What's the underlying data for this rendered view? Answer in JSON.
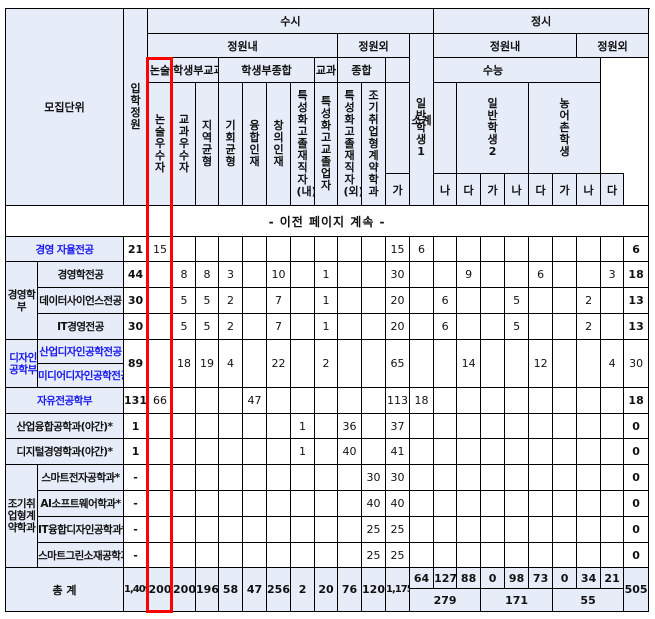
{
  "header": {
    "unit": "모집단위",
    "quota": "입학정원",
    "susi": "수시",
    "jeongsi": "정시",
    "within": "정원내",
    "outside": "정원외",
    "subtotal": "소계",
    "nonsul": "논술",
    "gyogwa_group": "학생부교과",
    "jonghap_group": "학생부종합",
    "gyogwa": "교과",
    "jonghap": "종합",
    "suneung": "수능",
    "susi_cols": [
      "논술우수자",
      "교과우수자",
      "지역균형",
      "기회균형",
      "융합인재",
      "창의인재",
      "특성화고졸재직자(내)",
      "특성화고교졸업자",
      "특성화고졸재직자(외)",
      "조기취업형계약학과"
    ],
    "jeongsi_groups": [
      "일반학생1",
      "일반학생2",
      "농어촌학생"
    ],
    "gun": [
      "가",
      "나",
      "다"
    ]
  },
  "continuation": "- 이전 페이지 계속 -",
  "rows": [
    {
      "name": "경영 자율전공",
      "blue": true,
      "quota": "21",
      "susi": [
        "15",
        "",
        "",
        "",
        "",
        "",
        "",
        "",
        "",
        "",
        "15"
      ],
      "jeongsi": [
        "6",
        "",
        "",
        "",
        "",
        "",
        "",
        "",
        "",
        "6"
      ]
    },
    {
      "group": "경영학부",
      "groupSpan": 3,
      "name": "경영학전공",
      "quota": "44",
      "susi": [
        "",
        "8",
        "8",
        "3",
        "",
        "10",
        "",
        "1",
        "",
        "",
        "30"
      ],
      "jeongsi": [
        "",
        "",
        "9",
        "",
        "",
        "6",
        "",
        "",
        "3",
        "18"
      ]
    },
    {
      "name": "데이터사이언스전공",
      "quota": "30",
      "susi": [
        "",
        "5",
        "5",
        "2",
        "",
        "7",
        "",
        "1",
        "",
        "",
        "20"
      ],
      "jeongsi": [
        "",
        "6",
        "",
        "",
        "5",
        "",
        "",
        "2",
        "",
        "13"
      ]
    },
    {
      "name": "IT경영전공",
      "quota": "30",
      "susi": [
        "",
        "5",
        "5",
        "2",
        "",
        "7",
        "",
        "1",
        "",
        "",
        "20"
      ],
      "jeongsi": [
        "",
        "6",
        "",
        "",
        "5",
        "",
        "",
        "2",
        "",
        "13"
      ]
    },
    {
      "group": "디자인공학부",
      "groupSpan": 2,
      "blue": true,
      "name": "산업디자인공학전공",
      "name2": "미디어디자인공학전공",
      "quota": "89",
      "susi": [
        "",
        "18",
        "19",
        "4",
        "",
        "22",
        "",
        "2",
        "",
        "",
        "65"
      ],
      "jeongsi": [
        "",
        "",
        "14",
        "",
        "",
        "12",
        "",
        "",
        "4",
        "30"
      ]
    },
    {
      "name": "자유전공학부",
      "blue": true,
      "quota": "131",
      "susi": [
        "66",
        "",
        "",
        "",
        "47",
        "",
        "",
        "",
        "",
        "",
        "113"
      ],
      "jeongsi": [
        "18",
        "",
        "",
        "",
        "",
        "",
        "",
        "",
        "",
        "18"
      ]
    },
    {
      "name": "산업융합공학과(야간)*",
      "quota": "1",
      "susi": [
        "",
        "",
        "",
        "",
        "",
        "",
        "1",
        "",
        "36",
        "",
        "37"
      ],
      "jeongsi": [
        "",
        "",
        "",
        "",
        "",
        "",
        "",
        "",
        "",
        "0"
      ]
    },
    {
      "name": "디지털경영학과(야간)*",
      "quota": "1",
      "susi": [
        "",
        "",
        "",
        "",
        "",
        "",
        "1",
        "",
        "40",
        "",
        "41"
      ],
      "jeongsi": [
        "",
        "",
        "",
        "",
        "",
        "",
        "",
        "",
        "",
        "0"
      ]
    },
    {
      "group": "조기취업형계약학과",
      "groupSpan": 4,
      "name": "스마트전자공학과*",
      "quota": "-",
      "susi": [
        "",
        "",
        "",
        "",
        "",
        "",
        "",
        "",
        "",
        "30",
        "30"
      ],
      "jeongsi": [
        "",
        "",
        "",
        "",
        "",
        "",
        "",
        "",
        "",
        "0"
      ]
    },
    {
      "name": "AI소프트웨어학과*",
      "quota": "-",
      "susi": [
        "",
        "",
        "",
        "",
        "",
        "",
        "",
        "",
        "",
        "40",
        "40"
      ],
      "jeongsi": [
        "",
        "",
        "",
        "",
        "",
        "",
        "",
        "",
        "",
        "0"
      ]
    },
    {
      "name": "IT융합디자인공학과*",
      "quota": "-",
      "susi": [
        "",
        "",
        "",
        "",
        "",
        "",
        "",
        "",
        "",
        "25",
        "25"
      ],
      "jeongsi": [
        "",
        "",
        "",
        "",
        "",
        "",
        "",
        "",
        "",
        "0"
      ]
    },
    {
      "name": "스마트그린소재공학과*",
      "quota": "-",
      "susi": [
        "",
        "",
        "",
        "",
        "",
        "",
        "",
        "",
        "",
        "25",
        "25"
      ],
      "jeongsi": [
        "",
        "",
        "",
        "",
        "",
        "",
        "",
        "",
        "",
        "0"
      ]
    }
  ],
  "total": {
    "label": "총    계",
    "quota": "1,409",
    "susi": [
      "200",
      "200",
      "196",
      "58",
      "47",
      "256",
      "2",
      "20",
      "76",
      "120",
      "1,175"
    ],
    "jeongsi": [
      "64",
      "127",
      "88",
      "0",
      "98",
      "73",
      "0",
      "34",
      "21"
    ],
    "jeongsi_group_sums": [
      "279",
      "171",
      "55"
    ],
    "jeongsi_subtotal": "505"
  },
  "colors": {
    "header_bg": "#e6ecf8",
    "link_blue": "#1a1aee",
    "highlight": "#ff0000"
  }
}
